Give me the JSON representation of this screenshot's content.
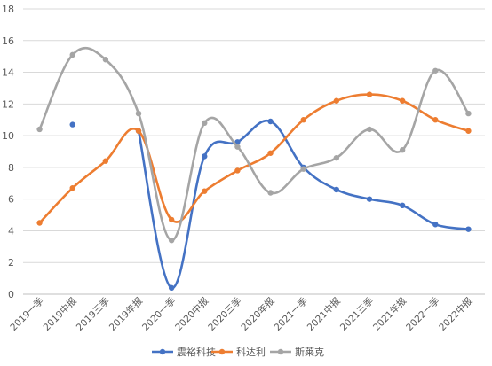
{
  "chart_data": {
    "type": "line",
    "categories": [
      "2019一季",
      "2019中报",
      "2019三季",
      "2019年报",
      "2020一季",
      "2020中报",
      "2020三季",
      "2020年报",
      "2021一季",
      "2021中报",
      "2021三季",
      "2021年报",
      "2022一季",
      "2022中报"
    ],
    "ylim": [
      0,
      18
    ],
    "yticks": [
      0,
      2,
      4,
      6,
      8,
      10,
      12,
      14,
      16,
      18
    ],
    "grid": true,
    "legend_position": "bottom",
    "smooth": true,
    "series": [
      {
        "name": "震裕科技",
        "color": "#4472c4",
        "values": [
          null,
          10.7,
          null,
          10.3,
          0.4,
          8.7,
          9.6,
          10.9,
          8.0,
          6.6,
          6.0,
          5.6,
          4.4,
          4.1
        ]
      },
      {
        "name": "科达利",
        "color": "#ed7d31",
        "values": [
          4.5,
          6.7,
          8.4,
          10.3,
          4.7,
          6.5,
          7.8,
          8.9,
          11.0,
          12.2,
          12.6,
          12.2,
          11.0,
          10.3
        ]
      },
      {
        "name": "斯莱克",
        "color": "#a5a5a5",
        "values": [
          10.4,
          15.1,
          14.8,
          11.4,
          3.4,
          10.8,
          9.3,
          6.4,
          7.9,
          8.6,
          10.4,
          9.1,
          14.1,
          11.4
        ]
      }
    ]
  }
}
